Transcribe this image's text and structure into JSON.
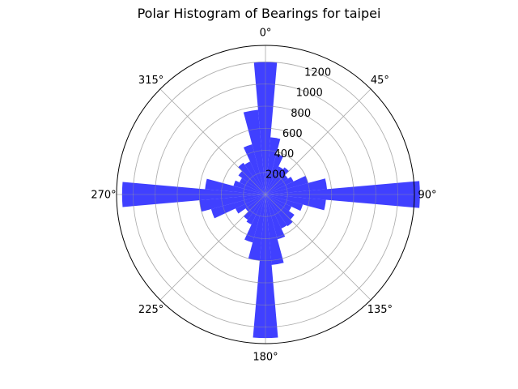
{
  "chart_data": {
    "type": "bar",
    "subtype": "polar-histogram",
    "title": "Polar Histogram of Bearings for taipei",
    "theta_direction": "clockwise",
    "theta_zero": "north",
    "theta_ticks": [
      0,
      45,
      90,
      135,
      180,
      225,
      270,
      315
    ],
    "theta_tick_labels": [
      "0°",
      "45°",
      "90°",
      "135°",
      "180°",
      "225°",
      "270°",
      "315°"
    ],
    "r_ticks": [
      200,
      400,
      600,
      800,
      1000,
      1200
    ],
    "r_tick_labels": [
      "200",
      "400",
      "600",
      "800",
      "1000",
      "1200"
    ],
    "r_label_angle_deg": 22.5,
    "rlim": [
      0,
      1350
    ],
    "grid": true,
    "bin_width_deg": 10,
    "categories": [
      0,
      10,
      20,
      30,
      40,
      50,
      60,
      70,
      80,
      90,
      100,
      110,
      120,
      130,
      140,
      150,
      160,
      170,
      180,
      190,
      200,
      210,
      220,
      230,
      240,
      250,
      260,
      270,
      280,
      290,
      300,
      310,
      320,
      330,
      340,
      350
    ],
    "values": [
      1200,
      520,
      380,
      280,
      300,
      250,
      280,
      400,
      560,
      1400,
      550,
      350,
      260,
      320,
      350,
      340,
      420,
      640,
      1300,
      600,
      450,
      300,
      280,
      220,
      300,
      510,
      600,
      1300,
      550,
      300,
      260,
      300,
      350,
      330,
      470,
      770
    ],
    "color": "#0000ff",
    "alpha": 0.75
  }
}
